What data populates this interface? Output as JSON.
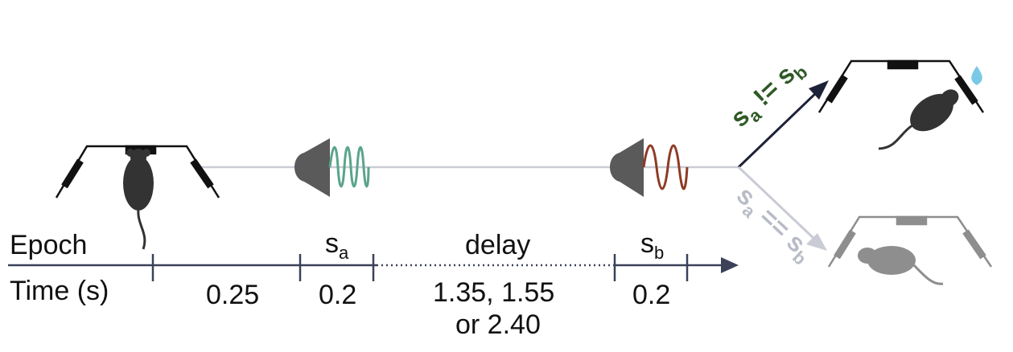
{
  "labels": {
    "epoch": "Epoch",
    "time": "Time (s)",
    "stim_a": "s",
    "stim_a_sub": "a",
    "delay": "delay",
    "stim_b": "s",
    "stim_b_sub": "b"
  },
  "durations": {
    "pre": "0.25",
    "sa": "0.2",
    "delay_line1": "1.35, 1.55",
    "delay_line2": "or 2.40",
    "sb": "0.2"
  },
  "outcomes": {
    "different": {
      "a": "s",
      "a_sub": "a",
      "op": " != ",
      "b": "s",
      "b_sub": "b",
      "color": "#2e5a26"
    },
    "same": {
      "a": "s",
      "a_sub": "a",
      "op": " == ",
      "b": "s",
      "b_sub": "b",
      "color": "#b8bcc6"
    }
  },
  "colors": {
    "axis": "#3b4158",
    "track": "#c9cbd5",
    "mouse": "#333333",
    "mouse_faded": "#8e8e8e",
    "tone_a": "#5aa58a",
    "tone_b": "#8e3b24",
    "speaker": "#5a5a5a",
    "water": "#7ac9e6"
  },
  "icons": [
    "mouse-icon",
    "speaker-icon",
    "water-drop-icon",
    "arena-icon"
  ]
}
